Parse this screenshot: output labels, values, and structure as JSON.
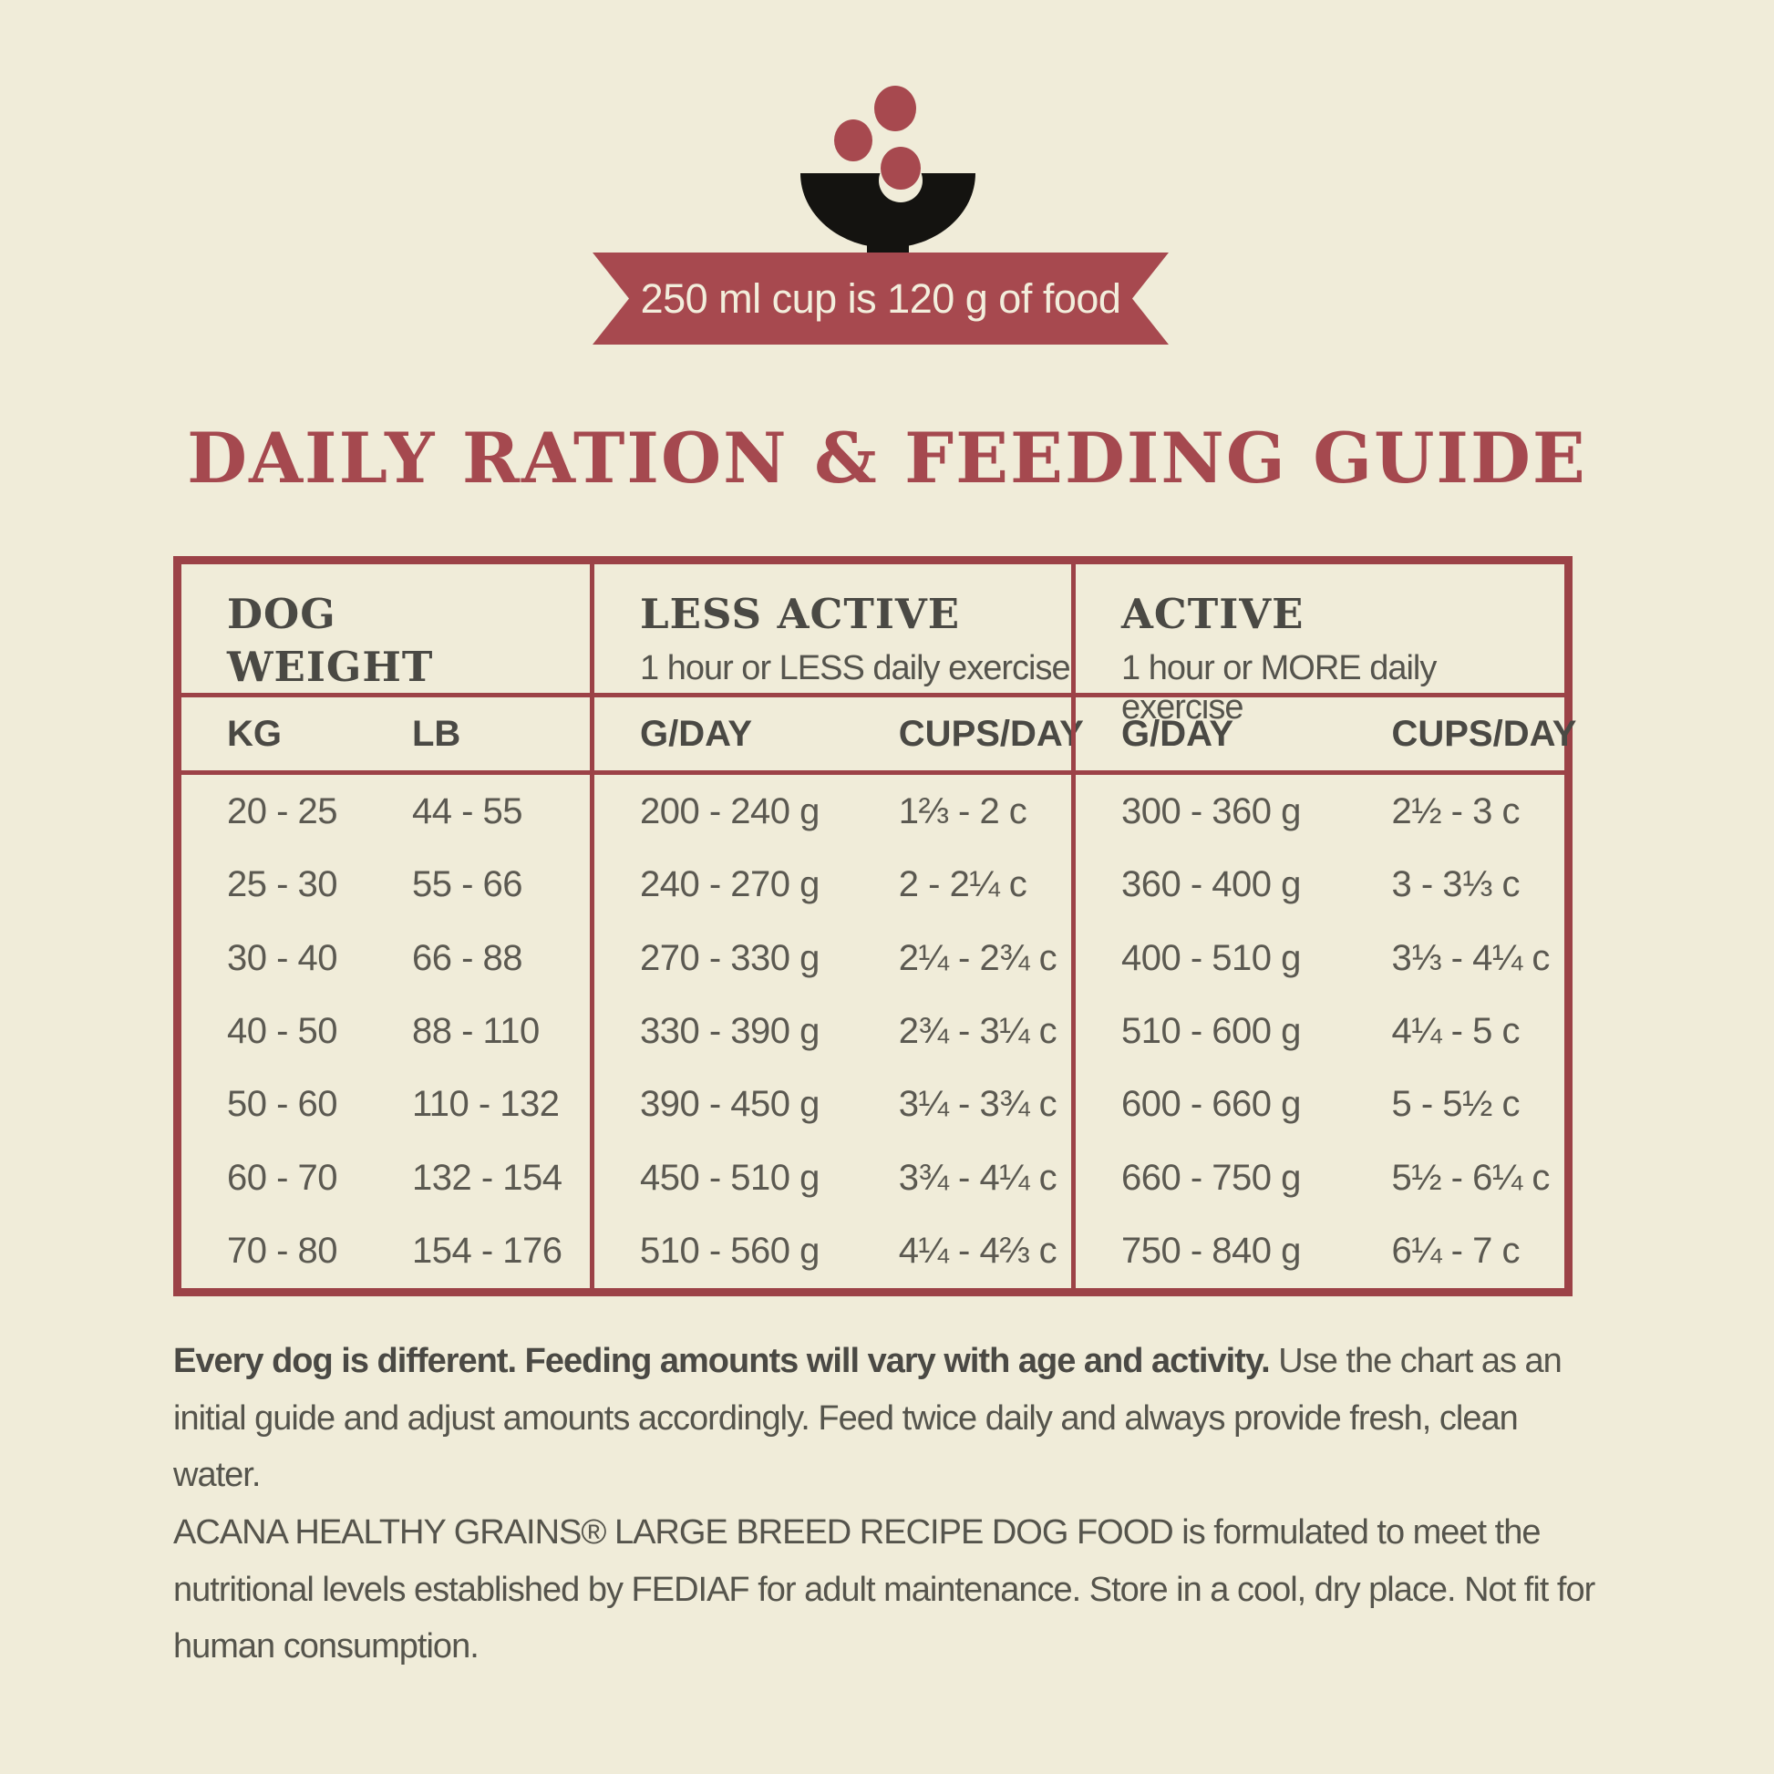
{
  "banner": {
    "text": "250 ml cup is 120 g of food"
  },
  "title": "DAILY RATION & FEEDING GUIDE",
  "colors": {
    "background": "#f0ecd9",
    "maroon": "#a7494f",
    "table_border": "#9c4247",
    "heading_text": "#4a4944",
    "body_text": "#5b5951",
    "bowl_black": "#141310",
    "ribbon_text": "#f2eedc"
  },
  "table": {
    "columns": [
      {
        "title": "DOG\nWEIGHT",
        "subtitle": "",
        "sub": [
          "KG",
          "LB"
        ]
      },
      {
        "title": "LESS ACTIVE",
        "subtitle": "1 hour or LESS daily exercise",
        "sub": [
          "G/DAY",
          "CUPS/DAY"
        ]
      },
      {
        "title": "ACTIVE",
        "subtitle": "1 hour or MORE daily exercise",
        "sub": [
          "G/DAY",
          "CUPS/DAY"
        ]
      }
    ],
    "rows": [
      {
        "kg": "20 - 25",
        "lb": "44 - 55",
        "la_g": "200 - 240 g",
        "la_c": "1⅔ - 2 c",
        "a_g": "300 - 360 g",
        "a_c": "2½ - 3 c"
      },
      {
        "kg": "25 - 30",
        "lb": "55 - 66",
        "la_g": "240 - 270 g",
        "la_c": "2 - 2¼ c",
        "a_g": "360 - 400 g",
        "a_c": "3 - 3⅓ c"
      },
      {
        "kg": "30 - 40",
        "lb": "66 - 88",
        "la_g": "270 - 330 g",
        "la_c": "2¼ - 2¾ c",
        "a_g": "400 - 510 g",
        "a_c": "3⅓ - 4¼ c"
      },
      {
        "kg": "40 - 50",
        "lb": "88 - 110",
        "la_g": "330 - 390 g",
        "la_c": "2¾ - 3¼ c",
        "a_g": "510 - 600 g",
        "a_c": "4¼ - 5 c"
      },
      {
        "kg": "50 - 60",
        "lb": "110 - 132",
        "la_g": "390 - 450 g",
        "la_c": "3¼ - 3¾ c",
        "a_g": "600 - 660 g",
        "a_c": "5 - 5½ c"
      },
      {
        "kg": "60 - 70",
        "lb": "132 - 154",
        "la_g": "450 - 510 g",
        "la_c": "3¾ - 4¼ c",
        "a_g": "660 - 750 g",
        "a_c": "5½ - 6¼ c"
      },
      {
        "kg": "70 - 80",
        "lb": "154 - 176",
        "la_g": "510 - 560 g",
        "la_c": "4¼ - 4⅔ c",
        "a_g": "750 - 840 g",
        "a_c": "6¼ - 7 c"
      }
    ]
  },
  "notes": {
    "p1_bold": "Every dog is different. Feeding amounts will vary with age and activity. ",
    "p1_rest": "Use the chart as an initial guide and adjust amounts accordingly. Feed twice daily and always provide fresh, clean water.",
    "p2": "ACANA HEALTHY GRAINS® LARGE BREED RECIPE DOG FOOD is formulated to meet the nutritional levels established by FEDIAF for adult maintenance. Store in a cool, dry place. Not fit for human consumption."
  }
}
